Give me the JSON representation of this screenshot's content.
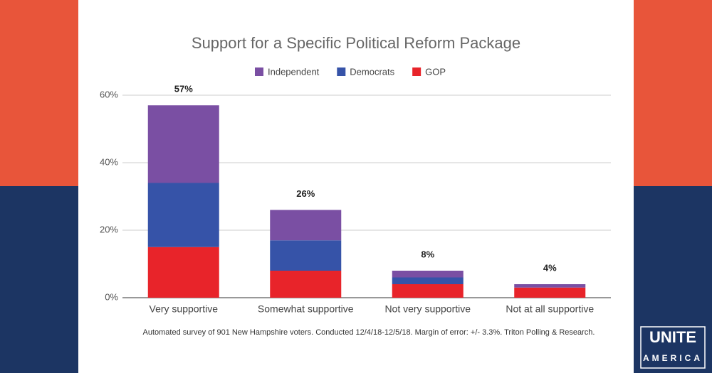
{
  "chart_data": {
    "type": "stacked_bar",
    "title": "Support for a Specific Political Reform Package",
    "categories": [
      "Very supportive",
      "Somewhat supportive",
      "Not very supportive",
      "Not at all supportive"
    ],
    "series": [
      {
        "name": "GOP",
        "color": "#e8242a",
        "values": [
          15,
          8,
          4,
          3
        ]
      },
      {
        "name": "Democrats",
        "color": "#3653a8",
        "values": [
          19,
          9,
          2,
          0
        ]
      },
      {
        "name": "Independent",
        "color": "#7a4fa3",
        "values": [
          23,
          9,
          2,
          1
        ]
      }
    ],
    "legend_order": [
      "Independent",
      "Democrats",
      "GOP"
    ],
    "totals": {
      "values": [
        57,
        26,
        8,
        4
      ],
      "value_labels": [
        "57%",
        "26%",
        "8%",
        "4%"
      ]
    },
    "ylim": [
      0,
      60
    ],
    "yticks": [
      {
        "value": 0,
        "label": "0%"
      },
      {
        "value": 20,
        "label": "20%"
      },
      {
        "value": 40,
        "label": "40%"
      },
      {
        "value": 60,
        "label": "60%"
      }
    ],
    "grid": true,
    "note": "Automated survey of 901 New Hampshire voters. Conducted 12/4/18-12/5/18. Margin of error: +/- 3.3%. Triton Polling & Research."
  },
  "logo": {
    "line1": "UNITE",
    "line2": "AMERICA"
  }
}
